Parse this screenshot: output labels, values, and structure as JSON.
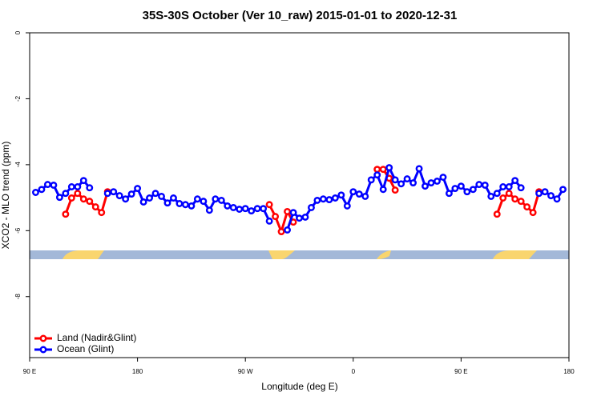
{
  "chart_data": {
    "type": "line",
    "title": "35S-30S October (Ver 10_raw)   2015-01-01 to 2020-12-31",
    "x_label": "Longitude (deg E)",
    "y_label": "XCO2 - MLO trend (ppm)",
    "x": [
      95,
      100,
      105,
      110,
      115,
      120,
      125,
      130,
      135,
      140,
      145,
      150,
      155,
      160,
      165,
      170,
      175,
      180,
      185,
      190,
      195,
      200,
      205,
      210,
      215,
      220,
      225,
      230,
      235,
      240,
      245,
      250,
      255,
      260,
      265,
      270,
      275,
      280,
      285,
      290,
      295,
      300,
      305,
      310,
      315,
      320,
      325,
      330,
      335,
      340,
      345,
      350,
      355,
      360,
      365,
      370,
      375,
      380,
      385,
      390,
      395,
      400,
      405,
      410,
      415,
      420,
      425,
      430,
      435,
      440,
      445,
      450,
      455,
      460,
      465,
      470,
      475,
      480,
      485,
      490,
      495,
      500,
      505,
      510,
      515,
      520,
      525,
      530,
      535
    ],
    "xlim": [
      90,
      540
    ],
    "xticks": [
      {
        "value": 90,
        "label": "90 E"
      },
      180,
      {
        "value": 270,
        "label": "90 W"
      },
      {
        "value": 360,
        "label": "0"
      },
      {
        "value": 450,
        "label": "90 E"
      },
      {
        "value": 540,
        "label": "180"
      }
    ],
    "ylim": [
      -9.85,
      0
    ],
    "yticks": [
      0,
      -2,
      -4,
      -6,
      -8
    ],
    "legend": "bottom-left",
    "series": [
      {
        "name": "Land (Nadir&Glint)",
        "color": "#ff0000",
        "values": [
          null,
          null,
          null,
          null,
          null,
          -5.5,
          -5.01,
          -4.87,
          -5.04,
          -5.11,
          -5.28,
          -5.45,
          -4.82,
          null,
          null,
          null,
          null,
          null,
          null,
          null,
          null,
          null,
          null,
          null,
          null,
          null,
          null,
          null,
          null,
          null,
          null,
          null,
          null,
          null,
          null,
          null,
          null,
          null,
          null,
          -5.21,
          -5.57,
          -6.03,
          -5.42,
          -5.74,
          null,
          null,
          null,
          null,
          null,
          null,
          null,
          null,
          null,
          null,
          null,
          null,
          null,
          -4.14,
          -4.14,
          -4.41,
          -4.77,
          null,
          null,
          null,
          null,
          null,
          null,
          null,
          null,
          null,
          null,
          null,
          null,
          null,
          null,
          null,
          null,
          -5.5,
          -5.01,
          -4.87,
          -5.04,
          -5.11,
          -5.28,
          -5.45,
          -4.82,
          null,
          null,
          null,
          null
        ]
      },
      {
        "name": "Ocean (Glint)",
        "color": "#0000ff",
        "values": [
          -4.84,
          -4.75,
          -4.6,
          -4.62,
          -4.99,
          -4.87,
          -4.67,
          -4.67,
          -4.48,
          -4.7,
          null,
          null,
          -4.87,
          -4.82,
          -4.94,
          -5.04,
          -4.89,
          -4.72,
          -5.13,
          -5.01,
          -4.87,
          -4.96,
          -5.16,
          -5.01,
          -5.18,
          -5.21,
          -5.25,
          -5.04,
          -5.11,
          -5.38,
          -5.04,
          -5.08,
          -5.25,
          -5.3,
          -5.35,
          -5.33,
          -5.4,
          -5.33,
          -5.33,
          -5.71,
          null,
          null,
          -5.98,
          -5.45,
          -5.62,
          -5.59,
          -5.3,
          -5.08,
          -5.04,
          -5.06,
          -5.01,
          -4.92,
          -5.25,
          -4.82,
          -4.89,
          -4.96,
          -4.46,
          -4.31,
          -4.75,
          -4.09,
          -4.46,
          -4.58,
          -4.43,
          -4.55,
          -4.12,
          -4.65,
          -4.55,
          -4.5,
          -4.38,
          -4.87,
          -4.72,
          -4.65,
          -4.82,
          -4.75,
          -4.6,
          -4.62,
          -4.96,
          -4.87,
          -4.67,
          -4.67,
          -4.48,
          -4.7,
          null,
          null,
          -4.87,
          -4.82,
          -4.94,
          -5.04,
          -4.75
        ]
      }
    ]
  }
}
